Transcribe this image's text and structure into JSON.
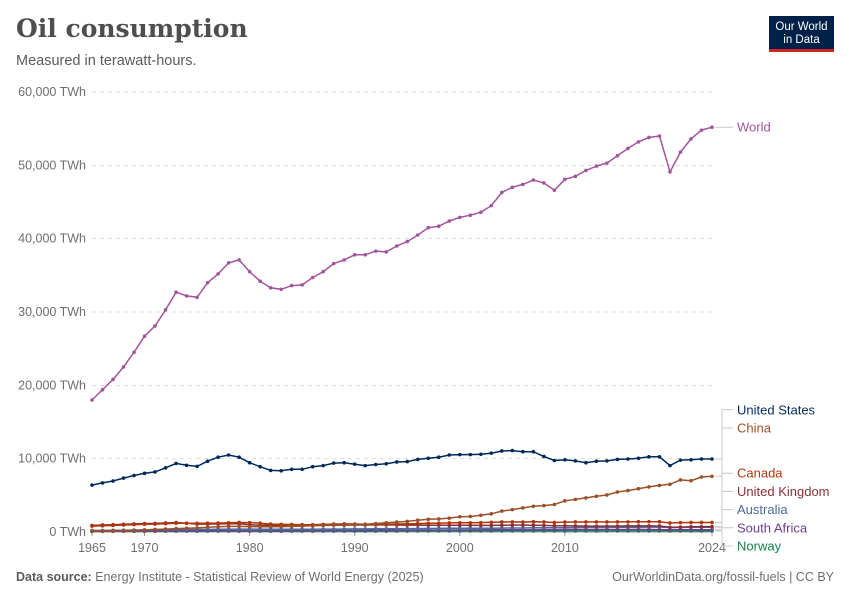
{
  "header": {
    "title": "Oil consumption",
    "subtitle": "Measured in terawatt-hours."
  },
  "logo": {
    "line1": "Our World",
    "line2": "in Data"
  },
  "footer": {
    "source_label": "Data source:",
    "source_text": "Energy Institute - Statistical Review of World Energy (2025)",
    "url_license": "OurWorldinData.org/fossil-fuels | CC BY"
  },
  "chart_data": {
    "type": "line",
    "title": "Oil consumption",
    "subtitle": "Measured in terawatt-hours.",
    "xlim": [
      1965,
      2024
    ],
    "ylim": [
      0,
      60000
    ],
    "y_ticks": [
      0,
      10000,
      20000,
      30000,
      40000,
      50000,
      60000
    ],
    "y_tick_labels": [
      "0 TWh",
      "10,000 TWh",
      "20,000 TWh",
      "30,000 TWh",
      "40,000 TWh",
      "50,000 TWh",
      "60,000 TWh"
    ],
    "x_ticks": [
      1965,
      1970,
      1980,
      1990,
      2000,
      2010,
      2024
    ],
    "x_tick_labels": [
      "1965",
      "1970",
      "1980",
      "1990",
      "2000",
      "2010",
      "2024"
    ],
    "grid": "horizontal dashed",
    "legend": "right, inline labels",
    "x": [
      1965,
      1966,
      1967,
      1968,
      1969,
      1970,
      1971,
      1972,
      1973,
      1974,
      1975,
      1976,
      1977,
      1978,
      1979,
      1980,
      1981,
      1982,
      1983,
      1984,
      1985,
      1986,
      1987,
      1988,
      1989,
      1990,
      1991,
      1992,
      1993,
      1994,
      1995,
      1996,
      1997,
      1998,
      1999,
      2000,
      2001,
      2002,
      2003,
      2004,
      2005,
      2006,
      2007,
      2008,
      2009,
      2010,
      2011,
      2012,
      2013,
      2014,
      2015,
      2016,
      2017,
      2018,
      2019,
      2020,
      2021,
      2022,
      2023,
      2024
    ],
    "series": [
      {
        "name": "World",
        "color": "#a2559c",
        "values": [
          18000,
          19400,
          20800,
          22500,
          24500,
          26700,
          28100,
          30300,
          32700,
          32200,
          32000,
          34000,
          35200,
          36700,
          37100,
          35500,
          34200,
          33300,
          33100,
          33600,
          33700,
          34700,
          35500,
          36600,
          37100,
          37800,
          37800,
          38300,
          38200,
          39000,
          39600,
          40500,
          41500,
          41700,
          42400,
          42900,
          43200,
          43600,
          44500,
          46300,
          47000,
          47400,
          48000,
          47600,
          46600,
          48100,
          48500,
          49300,
          49900,
          50300,
          51300,
          52300,
          53200,
          53800,
          54000,
          49100,
          51800,
          53600,
          54800,
          55200
        ]
      },
      {
        "name": "United States",
        "color": "#00295b",
        "values": [
          6400,
          6700,
          6950,
          7350,
          7700,
          8000,
          8200,
          8750,
          9350,
          9100,
          8950,
          9650,
          10200,
          10500,
          10200,
          9450,
          8900,
          8400,
          8350,
          8550,
          8550,
          8900,
          9050,
          9400,
          9450,
          9250,
          9050,
          9200,
          9300,
          9550,
          9600,
          9900,
          10050,
          10200,
          10500,
          10550,
          10550,
          10600,
          10750,
          11050,
          11100,
          10950,
          10950,
          10300,
          9750,
          9850,
          9700,
          9450,
          9650,
          9700,
          9900,
          9950,
          10050,
          10250,
          10250,
          9050,
          9800,
          9850,
          9950,
          9950
        ]
      },
      {
        "name": "China",
        "color": "#9a5129",
        "values": [
          130,
          160,
          170,
          160,
          200,
          280,
          350,
          400,
          470,
          500,
          560,
          640,
          710,
          770,
          760,
          740,
          720,
          720,
          740,
          760,
          810,
          850,
          900,
          970,
          1000,
          990,
          1060,
          1160,
          1260,
          1350,
          1450,
          1610,
          1740,
          1780,
          1890,
          2080,
          2120,
          2280,
          2480,
          2850,
          3050,
          3290,
          3510,
          3600,
          3750,
          4250,
          4450,
          4650,
          4870,
          5050,
          5450,
          5650,
          5900,
          6150,
          6350,
          6500,
          7100,
          7000,
          7500,
          7600
        ]
      },
      {
        "name": "Canada",
        "color": "#b13507",
        "values": [
          800,
          850,
          890,
          950,
          1000,
          1060,
          1080,
          1130,
          1200,
          1200,
          1180,
          1200,
          1220,
          1250,
          1300,
          1280,
          1200,
          1080,
          1030,
          1020,
          1000,
          1000,
          1030,
          1080,
          1110,
          1090,
          1050,
          1060,
          1060,
          1090,
          1110,
          1150,
          1190,
          1200,
          1240,
          1250,
          1250,
          1280,
          1320,
          1370,
          1380,
          1360,
          1400,
          1380,
          1300,
          1350,
          1370,
          1370,
          1380,
          1370,
          1380,
          1380,
          1400,
          1410,
          1400,
          1230,
          1280,
          1300,
          1300,
          1300
        ]
      },
      {
        "name": "United Kingdom",
        "color": "#883039",
        "values": [
          900,
          960,
          1000,
          1050,
          1100,
          1160,
          1170,
          1230,
          1290,
          1190,
          1080,
          1080,
          1100,
          1120,
          1120,
          980,
          920,
          910,
          880,
          1000,
          900,
          910,
          900,
          930,
          940,
          950,
          960,
          970,
          970,
          960,
          940,
          960,
          930,
          930,
          920,
          910,
          910,
          900,
          900,
          920,
          940,
          940,
          910,
          900,
          860,
          850,
          830,
          810,
          800,
          800,
          810,
          830,
          830,
          830,
          820,
          640,
          670,
          720,
          730,
          740
        ]
      },
      {
        "name": "Australia",
        "color": "#4c6a9c",
        "values": [
          210,
          220,
          240,
          250,
          270,
          290,
          300,
          310,
          330,
          340,
          350,
          360,
          370,
          380,
          390,
          390,
          380,
          370,
          370,
          380,
          380,
          380,
          390,
          400,
          410,
          420,
          420,
          430,
          440,
          450,
          460,
          470,
          480,
          490,
          500,
          510,
          510,
          510,
          520,
          530,
          540,
          550,
          570,
          580,
          580,
          590,
          610,
          630,
          630,
          630,
          640,
          650,
          660,
          670,
          680,
          600,
          610,
          640,
          660,
          660
        ]
      },
      {
        "name": "South Africa",
        "color": "#6d3e91",
        "values": [
          110,
          115,
          120,
          125,
          130,
          140,
          145,
          150,
          160,
          165,
          170,
          175,
          180,
          185,
          190,
          190,
          195,
          195,
          195,
          200,
          200,
          205,
          210,
          215,
          220,
          225,
          230,
          235,
          240,
          245,
          250,
          255,
          260,
          265,
          270,
          275,
          280,
          285,
          295,
          300,
          310,
          315,
          320,
          325,
          320,
          330,
          340,
          340,
          340,
          340,
          340,
          340,
          350,
          340,
          330,
          280,
          300,
          310,
          310,
          310
        ]
      },
      {
        "name": "Norway",
        "color": "#18804b",
        "values": [
          80,
          85,
          90,
          95,
          100,
          105,
          110,
          115,
          120,
          115,
          110,
          115,
          120,
          125,
          125,
          120,
          115,
          110,
          110,
          110,
          115,
          120,
          120,
          120,
          120,
          115,
          115,
          120,
          125,
          130,
          130,
          135,
          135,
          140,
          140,
          140,
          140,
          140,
          140,
          145,
          145,
          145,
          150,
          150,
          145,
          150,
          150,
          150,
          150,
          150,
          150,
          150,
          150,
          150,
          150,
          140,
          140,
          140,
          140,
          140
        ]
      }
    ]
  }
}
